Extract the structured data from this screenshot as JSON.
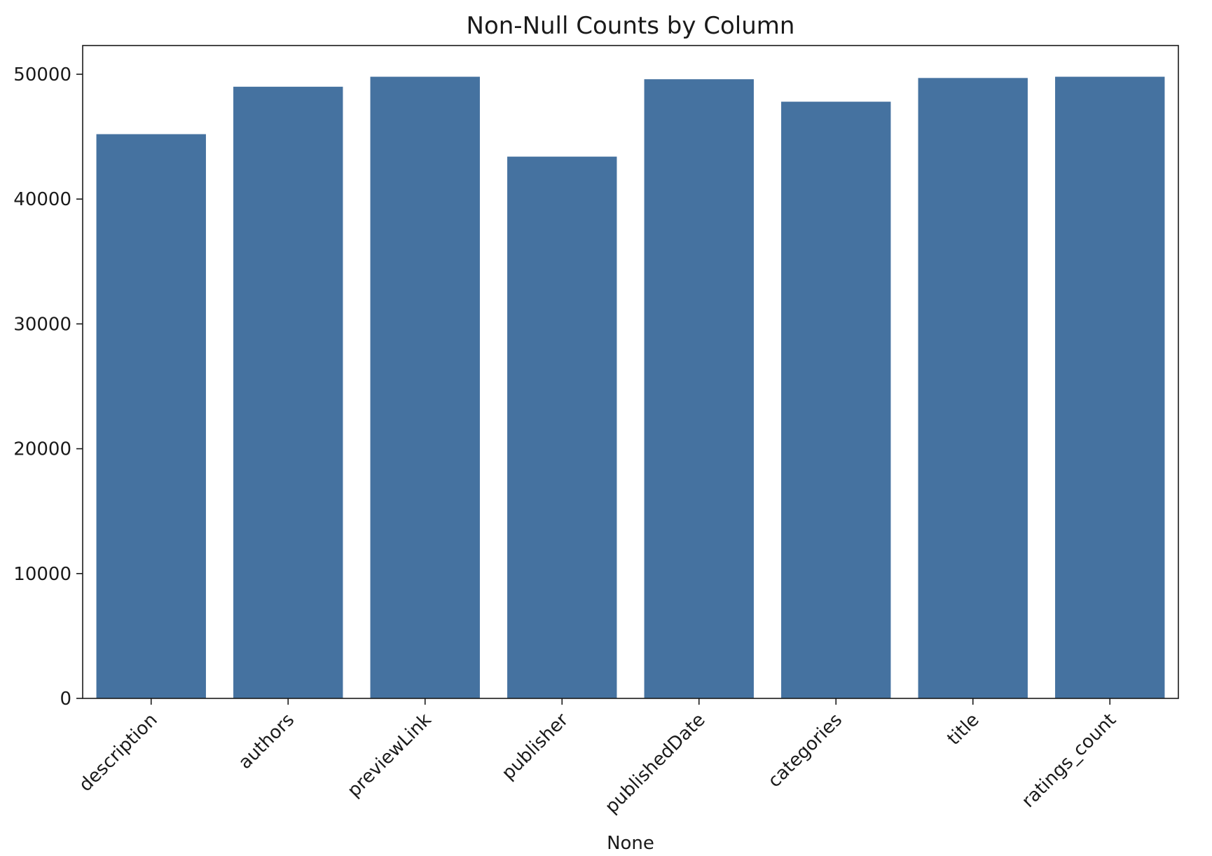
{
  "chart_data": {
    "type": "bar",
    "title": "Non-Null Counts by Column",
    "xlabel": "None",
    "ylabel": "",
    "categories": [
      "description",
      "authors",
      "previewLink",
      "publisher",
      "publishedDate",
      "categories",
      "title",
      "ratings_count"
    ],
    "values": [
      45200,
      49000,
      49800,
      43400,
      49600,
      47800,
      49700,
      49800
    ],
    "ylim": [
      0,
      52300
    ],
    "yticks": [
      0,
      10000,
      20000,
      30000,
      40000,
      50000
    ],
    "grid": false,
    "legend": "none",
    "bar_color": "#4572a0"
  }
}
